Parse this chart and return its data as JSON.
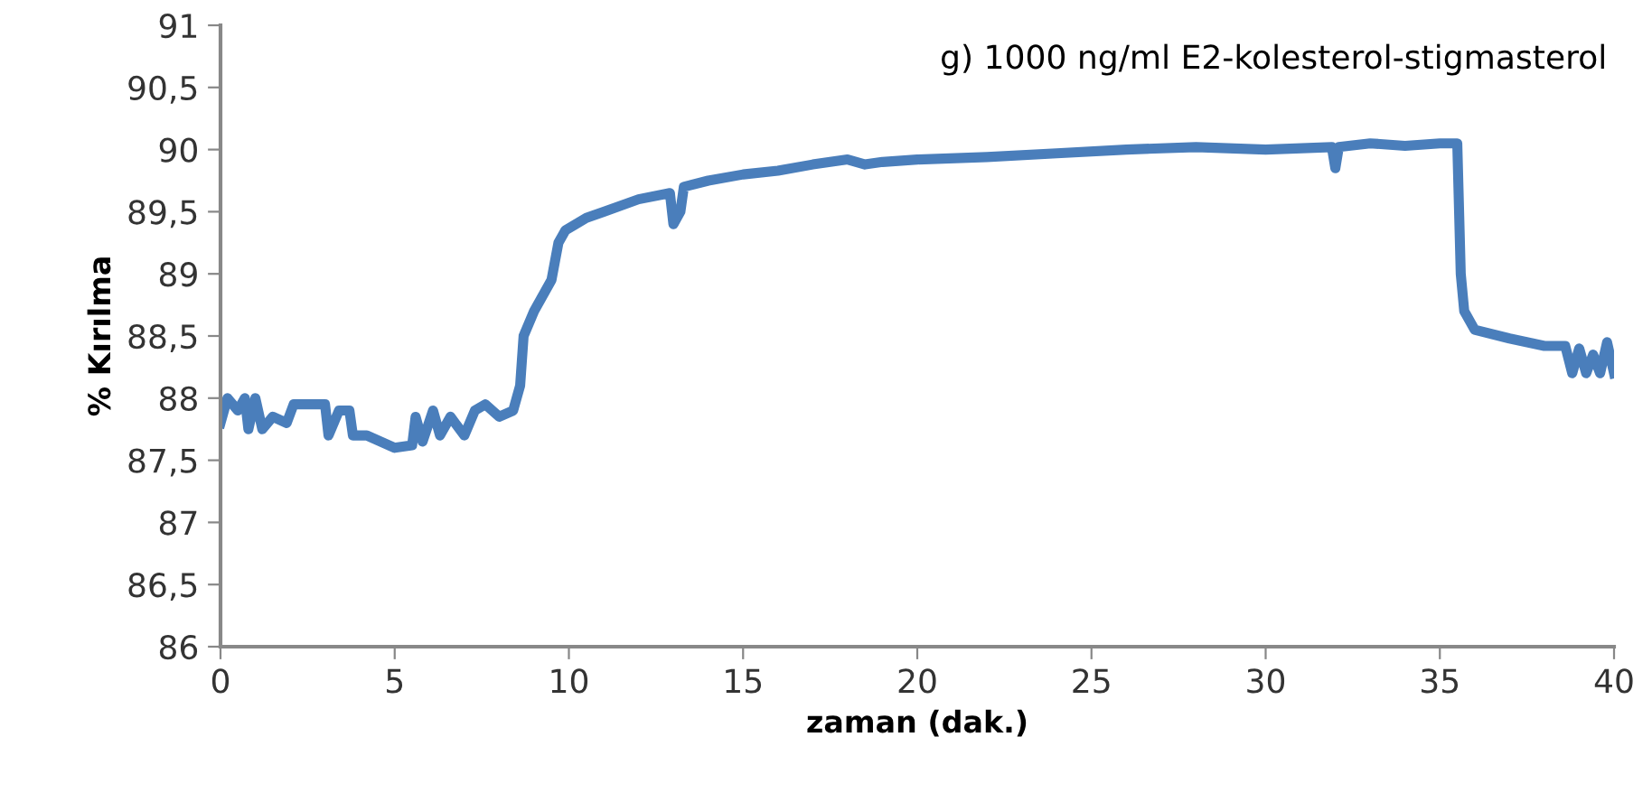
{
  "chart_data": {
    "type": "line",
    "title": "g) 1000 ng/ml E2-kolesterol-stigmasterol",
    "xlabel": "zaman (dak.)",
    "ylabel": "% Kırılma",
    "x": [
      0,
      0.2,
      0.5,
      0.7,
      0.8,
      1.0,
      1.2,
      1.5,
      1.9,
      2.1,
      2.7,
      3.0,
      3.1,
      3.4,
      3.7,
      3.8,
      4.2,
      5.0,
      5.5,
      5.6,
      5.8,
      6.1,
      6.3,
      6.6,
      7.0,
      7.3,
      7.6,
      8.0,
      8.4,
      8.6,
      8.7,
      9.0,
      9.5,
      9.7,
      9.9,
      10.5,
      11,
      12,
      12.9,
      13.0,
      13.2,
      13.3,
      14,
      15,
      16,
      17,
      18,
      18.5,
      19,
      20,
      22,
      24,
      26,
      28,
      30,
      31.9,
      32,
      32.1,
      33,
      34,
      35,
      35.5,
      35.6,
      35.7,
      36,
      37,
      38,
      38.6,
      38.8,
      39,
      39.2,
      39.4,
      39.6,
      39.8,
      40
    ],
    "series": [
      {
        "color": "#4a7ebb",
        "values": [
          87.8,
          88.0,
          87.9,
          88.0,
          87.75,
          88.0,
          87.75,
          87.85,
          87.8,
          87.95,
          87.95,
          87.95,
          87.7,
          87.9,
          87.9,
          87.7,
          87.7,
          87.6,
          87.62,
          87.85,
          87.65,
          87.9,
          87.7,
          87.85,
          87.7,
          87.9,
          87.95,
          87.85,
          87.9,
          88.1,
          88.5,
          88.7,
          88.95,
          89.25,
          89.35,
          89.45,
          89.5,
          89.6,
          89.65,
          89.4,
          89.5,
          89.7,
          89.75,
          89.8,
          89.83,
          89.88,
          89.92,
          89.88,
          89.9,
          89.92,
          89.94,
          89.97,
          90.0,
          90.02,
          90.0,
          90.02,
          89.85,
          90.02,
          90.05,
          90.03,
          90.05,
          90.05,
          89.0,
          88.7,
          88.55,
          88.48,
          88.42,
          88.42,
          88.2,
          88.4,
          88.2,
          88.35,
          88.2,
          88.45,
          88.2
        ]
      }
    ],
    "xlim": [
      0,
      40
    ],
    "xticks": [
      0,
      5,
      10,
      15,
      20,
      25,
      30,
      35,
      40
    ],
    "ylim": [
      86,
      91
    ],
    "yticks": [
      86,
      {
        "value": 86.5,
        "label": "86,5"
      },
      87,
      {
        "value": 87.5,
        "label": "87,5"
      },
      88,
      {
        "value": 88.5,
        "label": "88,5"
      },
      89,
      {
        "value": 89.5,
        "label": "89,5"
      },
      90,
      {
        "value": 90.5,
        "label": "90,5"
      },
      91
    ],
    "grid": false,
    "legend": false,
    "marker": "none",
    "line_style": "solid"
  }
}
